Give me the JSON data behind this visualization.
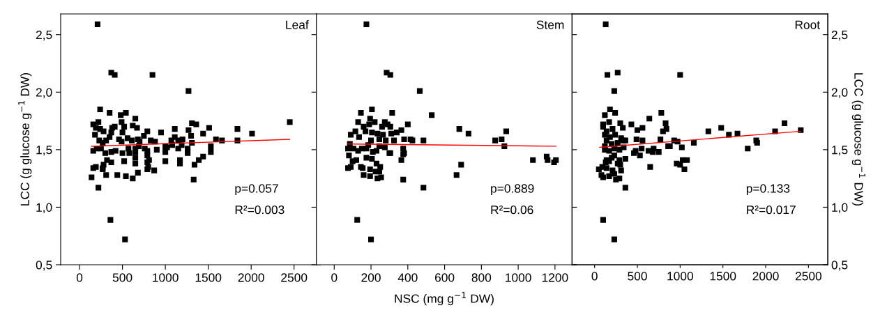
{
  "chart_data": [
    {
      "type": "scatter",
      "title": "Leaf",
      "ylabel": "LCC (g glucose g$^{−1}$ DW)",
      "xlim": [
        -220,
        2760
      ],
      "xticks": [
        0,
        500,
        1000,
        1500,
        2000,
        2500
      ],
      "ylim": [
        0.5,
        2.68
      ],
      "yticks": [
        {
          "value": 0.5,
          "label": "0,5"
        },
        {
          "value": 1.0,
          "label": "1,0"
        },
        {
          "value": 1.5,
          "label": "1,5"
        },
        {
          "value": 2.0,
          "label": "2,0"
        },
        {
          "value": 2.5,
          "label": "2,5"
        }
      ],
      "annotations": [
        "p=0.057",
        "R²=0.003"
      ],
      "series": [
        {
          "marker": "square",
          "color": "#000000",
          "x": [
            210,
            370,
            410,
            850,
            1270,
            240,
            350,
            480,
            540,
            650,
            160,
            220,
            190,
            240,
            280,
            380,
            410,
            490,
            520,
            620,
            670,
            180,
            230,
            270,
            310,
            350,
            370,
            460,
            500,
            490,
            560,
            610,
            680,
            700,
            750,
            790,
            830,
            880,
            950,
            1110,
            1110,
            1070,
            1150,
            1200,
            1270,
            1310,
            1360,
            1300,
            1440,
            1510,
            1590,
            1660,
            1840,
            2010,
            1840,
            2450,
            160,
            200,
            250,
            300,
            370,
            420,
            500,
            570,
            580,
            650,
            650,
            690,
            760,
            790,
            900,
            1000,
            1000,
            1020,
            1080,
            1150,
            1190,
            1260,
            1260,
            1310,
            1530,
            1530,
            1440,
            1390,
            1340,
            1330,
            1170,
            1170,
            1000,
            870,
            790,
            810,
            790,
            800,
            790,
            680,
            650,
            650,
            620,
            540,
            520,
            440,
            370,
            320,
            280,
            270,
            270,
            190,
            160,
            140,
            220,
            310,
            360,
            530
          ],
          "values": [
            2.59,
            2.17,
            2.15,
            2.15,
            2.01,
            1.85,
            1.82,
            1.8,
            1.82,
            1.77,
            1.72,
            1.74,
            1.69,
            1.68,
            1.66,
            1.69,
            1.7,
            1.74,
            1.7,
            1.71,
            1.69,
            1.63,
            1.58,
            1.56,
            1.58,
            1.61,
            1.65,
            1.59,
            1.65,
            1.57,
            1.6,
            1.58,
            1.59,
            1.57,
            1.62,
            1.66,
            1.58,
            1.57,
            1.65,
            1.68,
            1.61,
            1.58,
            1.58,
            1.59,
            1.67,
            1.73,
            1.72,
            1.62,
            1.64,
            1.69,
            1.59,
            1.58,
            1.68,
            1.64,
            1.58,
            1.74,
            1.49,
            1.51,
            1.51,
            1.47,
            1.48,
            1.49,
            1.47,
            1.51,
            1.47,
            1.51,
            1.48,
            1.53,
            1.51,
            1.49,
            1.5,
            1.53,
            1.48,
            1.52,
            1.54,
            1.51,
            1.54,
            1.51,
            1.47,
            1.56,
            1.53,
            1.48,
            1.44,
            1.41,
            1.37,
            1.24,
            1.41,
            1.38,
            1.4,
            1.32,
            1.39,
            1.41,
            1.45,
            1.35,
            1.33,
            1.3,
            1.38,
            1.43,
            1.25,
            1.27,
            1.4,
            1.28,
            1.39,
            1.41,
            1.37,
            1.34,
            1.33,
            1.35,
            1.34,
            1.26,
            1.17,
            1.28,
            0.89,
            0.72
          ]
        },
        {
          "type": "line",
          "color": "#ff0000",
          "x": [
            140,
            2450
          ],
          "values": [
            1.53,
            1.59
          ]
        }
      ]
    },
    {
      "type": "scatter",
      "title": "Stem",
      "xlabel": "NSC (mg g$^{−1}$ DW)",
      "xlim": [
        -97,
        1293
      ],
      "xticks": [
        0,
        200,
        400,
        600,
        800,
        1000,
        1200
      ],
      "ylim": [
        0.5,
        2.68
      ],
      "yticks": [
        {
          "value": 0.5,
          "label": null
        },
        {
          "value": 1.0,
          "label": null
        },
        {
          "value": 1.5,
          "label": null
        },
        {
          "value": 2.0,
          "label": null
        },
        {
          "value": 2.5,
          "label": null
        }
      ],
      "tick_labels": "x",
      "annotations": [
        "p=0.889",
        "R²=0.06"
      ],
      "series": [
        {
          "marker": "square",
          "color": "#000000",
          "x": [
            175,
            285,
            305,
            465,
            530,
            205,
            145,
            315,
            195,
            130,
            220,
            160,
            190,
            275,
            260,
            290,
            305,
            400,
            365,
            115,
            90,
            170,
            205,
            235,
            265,
            310,
            340,
            135,
            200,
            245,
            280,
            325,
            380,
            415,
            425,
            485,
            680,
            730,
            875,
            910,
            935,
            925,
            75,
            85,
            105,
            130,
            150,
            175,
            185,
            210,
            230,
            245,
            275,
            300,
            305,
            375,
            380,
            375,
            80,
            100,
            120,
            175,
            205,
            230,
            250,
            195,
            225,
            245,
            155,
            145,
            75,
            90,
            160,
            195,
            235,
            255,
            365,
            375,
            485,
            665,
            690,
            1080,
            1155,
            1160,
            1195,
            1205,
            125,
            200
          ],
          "values": [
            2.59,
            2.17,
            2.15,
            2.01,
            1.8,
            1.85,
            1.82,
            1.82,
            1.77,
            1.74,
            1.74,
            1.7,
            1.72,
            1.74,
            1.7,
            1.72,
            1.7,
            1.72,
            1.67,
            1.66,
            1.63,
            1.66,
            1.65,
            1.64,
            1.63,
            1.64,
            1.65,
            1.61,
            1.58,
            1.59,
            1.58,
            1.58,
            1.59,
            1.59,
            1.58,
            1.58,
            1.68,
            1.64,
            1.58,
            1.59,
            1.66,
            1.53,
            1.51,
            1.55,
            1.51,
            1.49,
            1.51,
            1.51,
            1.54,
            1.48,
            1.49,
            1.53,
            1.52,
            1.47,
            1.47,
            1.51,
            1.47,
            1.46,
            1.45,
            1.4,
            1.41,
            1.43,
            1.42,
            1.38,
            1.35,
            1.33,
            1.31,
            1.31,
            1.34,
            1.35,
            1.34,
            1.35,
            1.28,
            1.27,
            1.25,
            1.26,
            1.41,
            1.24,
            1.17,
            1.28,
            1.37,
            1.41,
            1.44,
            1.41,
            1.39,
            1.41,
            0.89,
            0.72
          ]
        },
        {
          "type": "line",
          "color": "#ff0000",
          "x": [
            75,
            1205
          ],
          "values": [
            1.55,
            1.53
          ]
        }
      ]
    },
    {
      "type": "scatter",
      "title": "Root",
      "y2label": "LCC (g glucose g$^{−1}$ DW)",
      "xlim": [
        -263,
        2726
      ],
      "xticks": [
        0,
        500,
        1000,
        1500,
        2000,
        2500
      ],
      "y2lim": [
        0.5,
        2.68
      ],
      "y2ticks": [
        {
          "value": 0.5,
          "label": "0,5"
        },
        {
          "value": 1.0,
          "label": "1,0"
        },
        {
          "value": 1.5,
          "label": "1,5"
        },
        {
          "value": 2.0,
          "label": "2,0"
        },
        {
          "value": 2.5,
          "label": "2,5"
        }
      ],
      "annotations": [
        "p=0.133",
        "R²=0.017"
      ],
      "series": [
        {
          "marker": "square",
          "axis": "y2",
          "color": "#000000",
          "x": [
            130,
            150,
            270,
            1000,
            230,
            180,
            120,
            240,
            640,
            780,
            100,
            170,
            100,
            300,
            330,
            430,
            500,
            560,
            830,
            840,
            800,
            140,
            210,
            120,
            180,
            240,
            310,
            330,
            360,
            140,
            200,
            270,
            490,
            560,
            770,
            930,
            970,
            1160,
            1330,
            1480,
            1570,
            1670,
            2110,
            2220,
            2410,
            1890,
            1900,
            120,
            170,
            230,
            290,
            340,
            120,
            460,
            480,
            530,
            550,
            630,
            690,
            680,
            750,
            860,
            880,
            1020,
            1790,
            140,
            200,
            130,
            170,
            230,
            290,
            360,
            300,
            270,
            50,
            90,
            140,
            210,
            310,
            80,
            100,
            170,
            230,
            250,
            290,
            360,
            650,
            960,
            1000,
            1030,
            1080,
            1050,
            100,
            230
          ],
          "values": [
            2.59,
            2.15,
            2.17,
            2.15,
            2.01,
            1.85,
            1.8,
            1.82,
            1.77,
            1.82,
            1.72,
            1.74,
            1.7,
            1.73,
            1.69,
            1.72,
            1.67,
            1.69,
            1.73,
            1.68,
            1.66,
            1.66,
            1.68,
            1.63,
            1.61,
            1.63,
            1.6,
            1.58,
            1.58,
            1.58,
            1.55,
            1.56,
            1.59,
            1.58,
            1.59,
            1.58,
            1.57,
            1.56,
            1.66,
            1.69,
            1.63,
            1.64,
            1.66,
            1.73,
            1.67,
            1.58,
            1.56,
            1.5,
            1.49,
            1.51,
            1.5,
            1.52,
            1.53,
            1.47,
            1.49,
            1.45,
            1.51,
            1.49,
            1.51,
            1.48,
            1.48,
            1.53,
            1.53,
            1.52,
            1.51,
            1.41,
            1.43,
            1.39,
            1.4,
            1.45,
            1.41,
            1.42,
            1.37,
            1.38,
            1.33,
            1.35,
            1.34,
            1.32,
            1.32,
            1.28,
            1.26,
            1.27,
            1.29,
            1.24,
            1.25,
            1.17,
            1.35,
            1.38,
            1.37,
            1.41,
            1.41,
            1.33,
            0.89,
            0.72
          ]
        },
        {
          "type": "line",
          "axis": "y2",
          "color": "#ff0000",
          "x": [
            60,
            2410
          ],
          "values": [
            1.52,
            1.66
          ]
        }
      ]
    }
  ]
}
